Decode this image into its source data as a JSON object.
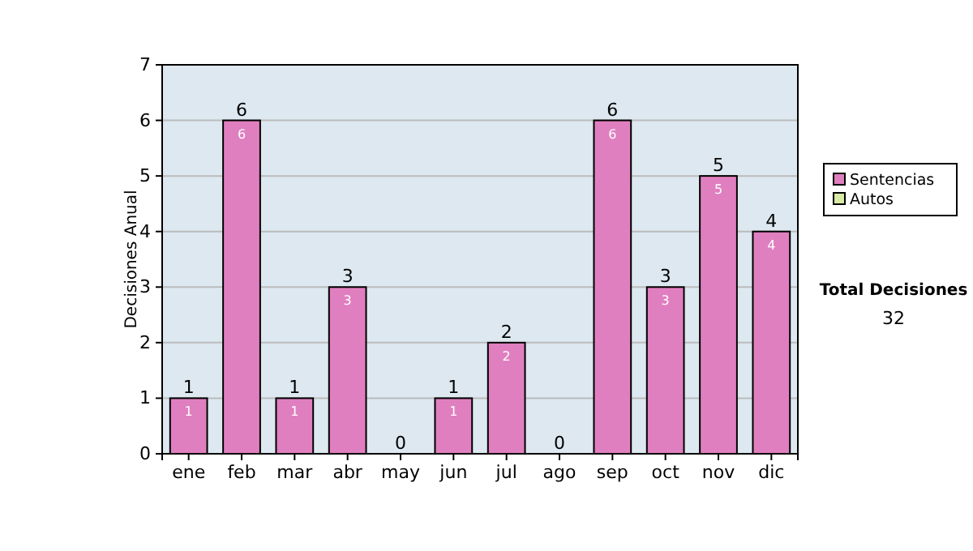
{
  "chart_data": {
    "type": "bar",
    "ylabel": "Decisiones Anual",
    "categories": [
      "ene",
      "feb",
      "mar",
      "abr",
      "may",
      "jun",
      "jul",
      "ago",
      "sep",
      "oct",
      "nov",
      "dic"
    ],
    "stacked": true,
    "series": [
      {
        "name": "Sentencias",
        "color": "#e07fbf",
        "values": [
          1,
          6,
          1,
          3,
          0,
          1,
          2,
          0,
          6,
          3,
          5,
          4
        ],
        "value_labels": [
          "1",
          "6",
          "1",
          "3",
          null,
          "1",
          "2",
          null,
          "6",
          "3",
          "5",
          "4"
        ]
      },
      {
        "name": "Autos",
        "color": "#d8eaa4",
        "values": [
          0,
          0,
          0,
          0,
          0,
          0,
          0,
          0,
          0,
          0,
          0,
          0
        ]
      }
    ],
    "totals": [
      "1",
      "6",
      "1",
      "3",
      "0",
      "1",
      "2",
      "0",
      "6",
      "3",
      "5",
      "4"
    ],
    "ylim": [
      0,
      7
    ],
    "yticks": [
      0,
      1,
      2,
      3,
      4,
      5,
      6,
      7
    ],
    "grid": "y",
    "legend": "right",
    "annotations": [
      "Total Decisiones",
      "32"
    ]
  }
}
